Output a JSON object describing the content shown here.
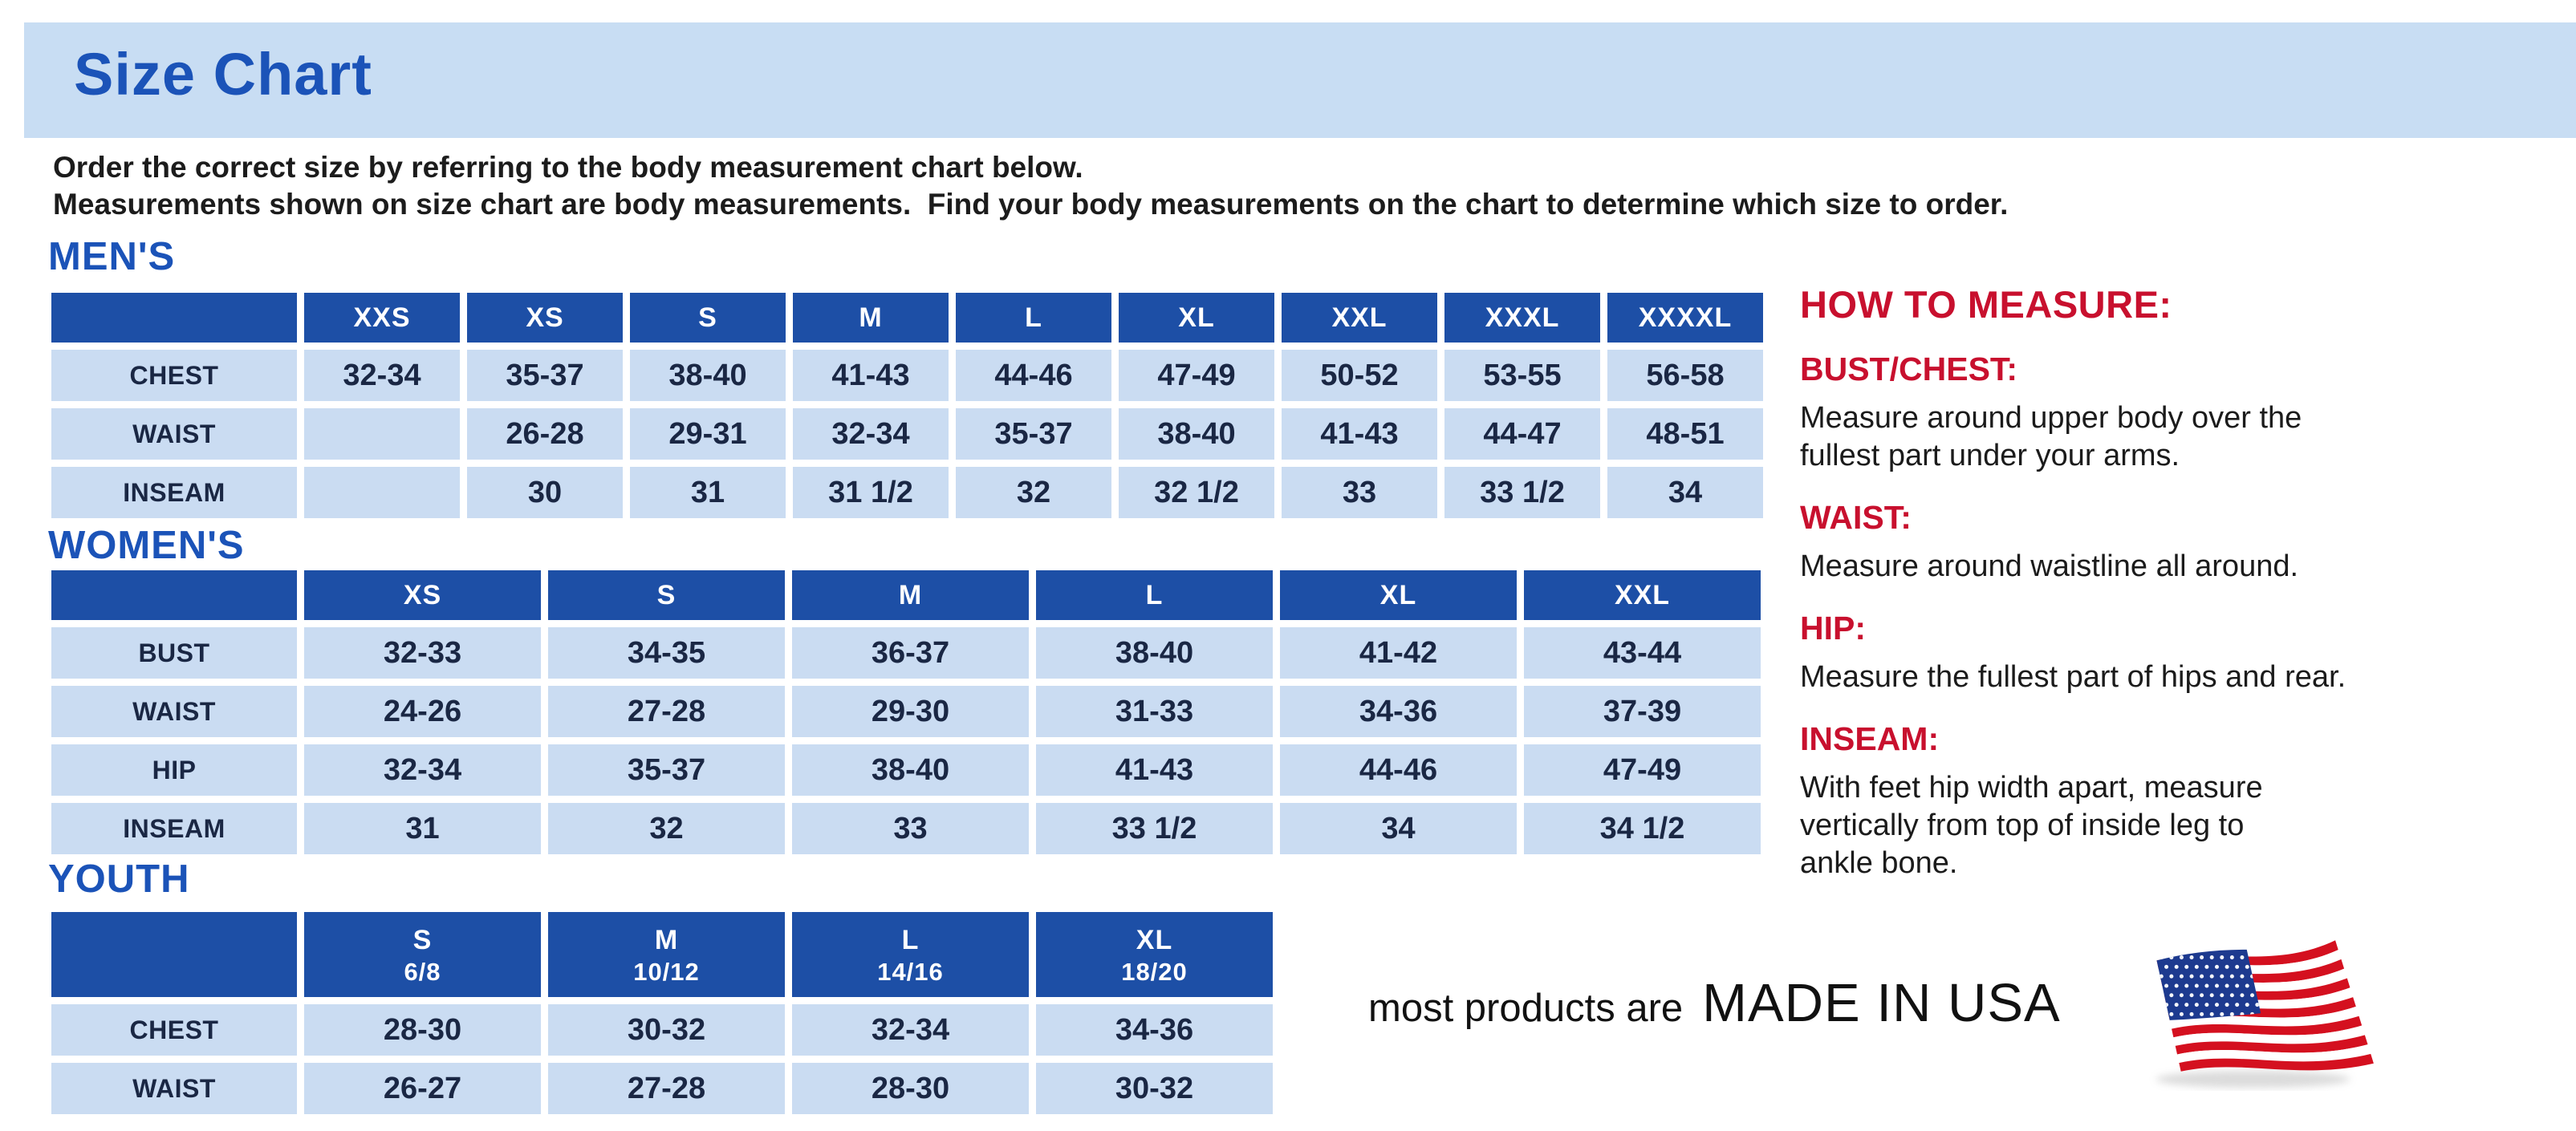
{
  "page": {
    "title": "Size Chart"
  },
  "intro": {
    "line1": "Order the correct size by referring to the body measurement chart below.",
    "line2": "Measurements shown on size chart are body measurements.  Find your body measurements on the chart to determine which size to order."
  },
  "tables": {
    "mens": {
      "section": "MEN'S",
      "columns": [
        "XXS",
        "XS",
        "S",
        "M",
        "L",
        "XL",
        "XXL",
        "XXXL",
        "XXXXL"
      ],
      "rows": [
        {
          "label": "CHEST",
          "values": [
            "32-34",
            "35-37",
            "38-40",
            "41-43",
            "44-46",
            "47-49",
            "50-52",
            "53-55",
            "56-58"
          ]
        },
        {
          "label": "WAIST",
          "values": [
            "",
            "26-28",
            "29-31",
            "32-34",
            "35-37",
            "38-40",
            "41-43",
            "44-47",
            "48-51"
          ]
        },
        {
          "label": "INSEAM",
          "values": [
            "",
            "30",
            "31",
            "31 1/2",
            "32",
            "32 1/2",
            "33",
            "33 1/2",
            "34"
          ]
        }
      ]
    },
    "womens": {
      "section": "WOMEN'S",
      "columns": [
        "XS",
        "S",
        "M",
        "L",
        "XL",
        "XXL"
      ],
      "rows": [
        {
          "label": "BUST",
          "values": [
            "32-33",
            "34-35",
            "36-37",
            "38-40",
            "41-42",
            "43-44"
          ]
        },
        {
          "label": "WAIST",
          "values": [
            "24-26",
            "27-28",
            "29-30",
            "31-33",
            "34-36",
            "37-39"
          ]
        },
        {
          "label": "HIP",
          "values": [
            "32-34",
            "35-37",
            "38-40",
            "41-43",
            "44-46",
            "47-49"
          ]
        },
        {
          "label": "INSEAM",
          "values": [
            "31",
            "32",
            "33",
            "33 1/2",
            "34",
            "34 1/2"
          ]
        }
      ]
    },
    "youth": {
      "section": "YOUTH",
      "columns": [
        {
          "label": "S",
          "sub": "6/8"
        },
        {
          "label": "M",
          "sub": "10/12"
        },
        {
          "label": "L",
          "sub": "14/16"
        },
        {
          "label": "XL",
          "sub": "18/20"
        }
      ],
      "rows": [
        {
          "label": "CHEST",
          "values": [
            "28-30",
            "30-32",
            "32-34",
            "34-36"
          ]
        },
        {
          "label": "WAIST",
          "values": [
            "26-27",
            "27-28",
            "28-30",
            "30-32"
          ]
        }
      ]
    }
  },
  "how_to_measure": {
    "title": "HOW TO MEASURE:",
    "items": [
      {
        "term": "BUST/CHEST:",
        "desc": "Measure around upper body over the\nfullest part under your arms."
      },
      {
        "term": "WAIST:",
        "desc": "Measure around waistline all around."
      },
      {
        "term": "HIP:",
        "desc": "Measure the fullest part of hips and rear."
      },
      {
        "term": "INSEAM:",
        "desc": "With feet hip width apart, measure\nvertically from top of inside leg to\nankle bone."
      }
    ]
  },
  "footer": {
    "prefix": "most products are",
    "emphasis": "MADE IN USA",
    "flag_icon": "usa-flag"
  },
  "colors": {
    "header_blue": "#1d4fa6",
    "cell_blue": "#cadcf2",
    "banner_blue": "#c8ddf3",
    "title_blue": "#1b53b8",
    "accent_red": "#c8102e",
    "table_text": "#1a2744",
    "flag_red": "#d4101f",
    "flag_canton": "#1d3a8f"
  }
}
